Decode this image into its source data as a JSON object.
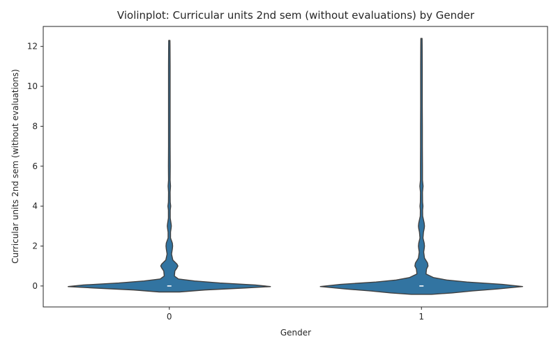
{
  "chart_data": {
    "type": "violin",
    "title": "Violinplot: Curricular units 2nd sem (without evaluations) by Gender",
    "xlabel": "Gender",
    "ylabel": "Curricular units 2nd sem (without evaluations)",
    "categories": [
      "0",
      "1"
    ],
    "ylim": [
      -1.05,
      13.0
    ],
    "yticks": [
      0,
      2,
      4,
      6,
      8,
      10,
      12
    ],
    "grid": false,
    "fill_color": "#3274a1",
    "edge_color": "#3f3f3f",
    "median_color": "#ffffff",
    "violins": [
      {
        "category": "0",
        "y_max": 12.3,
        "median": 0,
        "density_profile": [
          [
            -0.3,
            0.1
          ],
          [
            -0.2,
            0.35
          ],
          [
            -0.1,
            0.75
          ],
          [
            -0.03,
            1.0
          ],
          [
            0.05,
            0.85
          ],
          [
            0.15,
            0.5
          ],
          [
            0.25,
            0.25
          ],
          [
            0.35,
            0.09
          ],
          [
            0.5,
            0.05
          ],
          [
            0.75,
            0.055
          ],
          [
            0.9,
            0.075
          ],
          [
            1.0,
            0.085
          ],
          [
            1.1,
            0.075
          ],
          [
            1.3,
            0.035
          ],
          [
            1.6,
            0.022
          ],
          [
            1.85,
            0.03
          ],
          [
            2.0,
            0.033
          ],
          [
            2.15,
            0.03
          ],
          [
            2.4,
            0.012
          ],
          [
            2.7,
            0.012
          ],
          [
            2.9,
            0.018
          ],
          [
            3.0,
            0.02
          ],
          [
            3.1,
            0.018
          ],
          [
            3.4,
            0.009
          ],
          [
            3.8,
            0.009
          ],
          [
            4.0,
            0.014
          ],
          [
            4.2,
            0.009
          ],
          [
            4.7,
            0.008
          ],
          [
            5.0,
            0.012
          ],
          [
            5.3,
            0.008
          ],
          [
            6.0,
            0.009
          ],
          [
            7.0,
            0.008
          ],
          [
            8.0,
            0.008
          ],
          [
            9.0,
            0.008
          ],
          [
            10.0,
            0.008
          ],
          [
            11.0,
            0.008
          ],
          [
            12.0,
            0.007
          ],
          [
            12.3,
            0.0
          ]
        ]
      },
      {
        "category": "1",
        "y_max": 12.4,
        "median": 0,
        "density_profile": [
          [
            -0.42,
            0.1
          ],
          [
            -0.35,
            0.3
          ],
          [
            -0.25,
            0.5
          ],
          [
            -0.15,
            0.75
          ],
          [
            -0.03,
            1.0
          ],
          [
            0.08,
            0.8
          ],
          [
            0.2,
            0.45
          ],
          [
            0.3,
            0.25
          ],
          [
            0.42,
            0.12
          ],
          [
            0.6,
            0.045
          ],
          [
            0.85,
            0.05
          ],
          [
            1.0,
            0.065
          ],
          [
            1.15,
            0.06
          ],
          [
            1.4,
            0.03
          ],
          [
            1.7,
            0.022
          ],
          [
            1.9,
            0.028
          ],
          [
            2.0,
            0.03
          ],
          [
            2.15,
            0.027
          ],
          [
            2.4,
            0.015
          ],
          [
            2.7,
            0.02
          ],
          [
            2.9,
            0.028
          ],
          [
            3.0,
            0.03
          ],
          [
            3.15,
            0.027
          ],
          [
            3.5,
            0.012
          ],
          [
            3.8,
            0.011
          ],
          [
            4.0,
            0.015
          ],
          [
            4.2,
            0.011
          ],
          [
            4.7,
            0.01
          ],
          [
            5.0,
            0.016
          ],
          [
            5.3,
            0.01
          ],
          [
            6.0,
            0.01
          ],
          [
            7.0,
            0.009
          ],
          [
            8.0,
            0.009
          ],
          [
            9.0,
            0.008
          ],
          [
            10.0,
            0.008
          ],
          [
            11.0,
            0.008
          ],
          [
            12.0,
            0.007
          ],
          [
            12.4,
            0.0
          ]
        ]
      }
    ]
  }
}
